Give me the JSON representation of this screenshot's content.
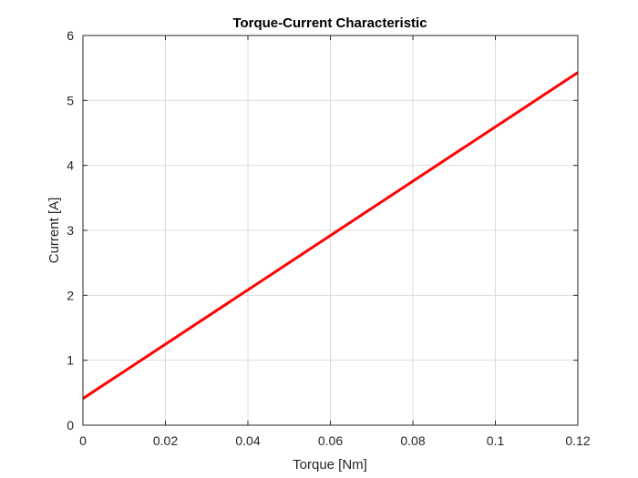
{
  "chart_data": {
    "type": "line",
    "title": "Torque-Current Characteristic",
    "xlabel": "Torque [Nm]",
    "ylabel": "Current [A]",
    "xlim": [
      0,
      0.12
    ],
    "ylim": [
      0,
      6
    ],
    "xticks": [
      0,
      0.02,
      0.04,
      0.06,
      0.08,
      0.1,
      0.12
    ],
    "xtick_labels": [
      "0",
      "0.02",
      "0.04",
      "0.06",
      "0.08",
      "0.1",
      "0.12"
    ],
    "yticks": [
      0,
      1,
      2,
      3,
      4,
      5,
      6
    ],
    "ytick_labels": [
      "0",
      "1",
      "2",
      "3",
      "4",
      "5",
      "6"
    ],
    "grid": true,
    "series": [
      {
        "color": "#ff0000",
        "x": [
          0,
          0.12
        ],
        "y": [
          0.41,
          5.43
        ]
      }
    ]
  }
}
